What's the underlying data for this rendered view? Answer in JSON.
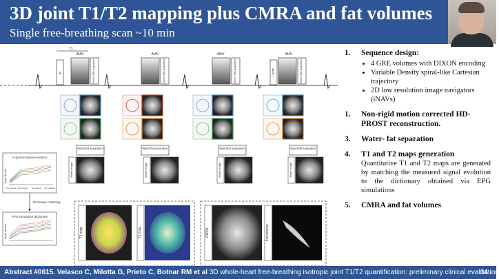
{
  "slide": {
    "title": "3D joint T1/T2 mapping plus CMRA and fat volumes",
    "subtitle": "Single free-breathing scan ~10 min"
  },
  "diagram": {
    "t1_label": "T1",
    "inav_label": "iNAV",
    "acq_label": "Dixon GRE Acquisition",
    "ir_label": "IR",
    "t2prep_label": "T2prep",
    "water_fat_label": "Water/fat separation",
    "water_image_label": "Water image",
    "acquired_signal_title": "Acquired signal evolution",
    "dictionary_matching_label": "Dictionary matching",
    "epg_dictionary_title": "EPG simulation dictionary",
    "signal_intensity_label": "Signal intensity",
    "volume_ticks": [
      "1st volume",
      "2nd volume",
      "3rd volume",
      "4th volume"
    ],
    "t1_map_label": "T1 map",
    "t2_map_label": "T2 map",
    "cmra_label": "CMRA",
    "fat_volume_label": "Fat volume"
  },
  "steps": [
    {
      "number": "1.",
      "heading": "Sequence design:",
      "bullets": [
        "4 GRE volumes with DIXON encoding",
        "Variable Density spiral-like Cartesian trajectory",
        "2D low resolution image navigators (iNAVs)"
      ]
    },
    {
      "number": "1.",
      "heading": "Non-rigid motion corrected HD-PROST reconstruction."
    },
    {
      "number": "3.",
      "heading": "Water- fat separation"
    },
    {
      "number": "4.",
      "heading": "T1 and T2 maps generation",
      "description": "Quantitative T1 and T2 maps are generated by matching the measured signal evolution to the dictionary obtained via EPG simulations"
    },
    {
      "number": "5.",
      "heading": "CMRA and fat volumes"
    }
  ],
  "footer": {
    "citation_bold": "Abstract #0615. Velasco C, Milotta G, Prieto C, Botnar RM et al",
    "citation_rest": " 3D whole-heart free-breathing isotropic joint T1/T2 quantification: preliminary clinical evaluation",
    "page_number": "34"
  },
  "colors": {
    "header_bg": "#2f5597",
    "border_blue": "#4a86c5",
    "border_orange": "#d97b2b",
    "border_green": "#3e9b52",
    "border_red": "#c0392b"
  }
}
